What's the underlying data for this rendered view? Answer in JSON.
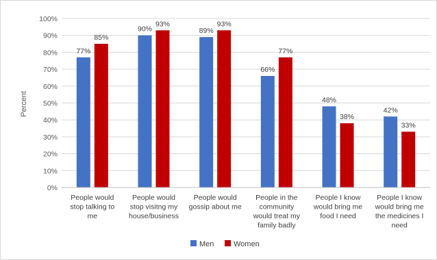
{
  "chart_data": {
    "type": "bar",
    "title": "",
    "ylabel": "Percent",
    "xlabel": "",
    "ylim": [
      0,
      100
    ],
    "yticks": [
      "0%",
      "10%",
      "20%",
      "30%",
      "40%",
      "50%",
      "60%",
      "70%",
      "80%",
      "90%",
      "100%"
    ],
    "grid": true,
    "legend_position": "bottom",
    "categories": [
      [
        "People would",
        "stop talking to",
        "me"
      ],
      [
        "People would",
        "stop visitng my",
        "house/business"
      ],
      [
        "People would",
        "gossip about me"
      ],
      [
        "People in the",
        "community",
        "would treat my",
        "family badly"
      ],
      [
        "People I know",
        "would bring me",
        "food  I need"
      ],
      [
        "People I know",
        "would bring me",
        "the medicines I",
        "need"
      ]
    ],
    "series": [
      {
        "name": "Men",
        "color": "#4472c4",
        "values": [
          77,
          90,
          89,
          66,
          48,
          42
        ],
        "labels": [
          "77%",
          "90%",
          "89%",
          "66%",
          "48%",
          "42%"
        ]
      },
      {
        "name": "Women",
        "color": "#c00000",
        "values": [
          85,
          93,
          93,
          77,
          38,
          33
        ],
        "labels": [
          "85%",
          "93%",
          "93%",
          "77%",
          "38%",
          "33%"
        ]
      }
    ]
  }
}
